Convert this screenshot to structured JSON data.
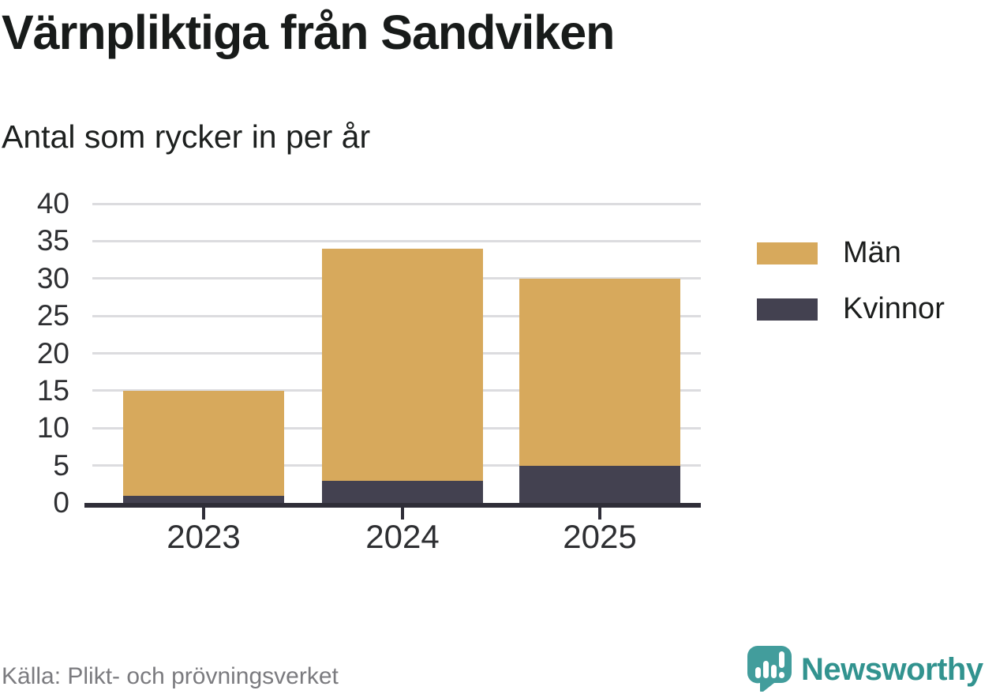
{
  "chart_data": {
    "type": "bar",
    "stacked": true,
    "title": "Värnpliktiga från Sandviken",
    "subtitle": "Antal som rycker in per år",
    "categories": [
      "2023",
      "2024",
      "2025"
    ],
    "series": [
      {
        "name": "Män",
        "color": "#d7a95c",
        "values": [
          14,
          31,
          25
        ]
      },
      {
        "name": "Kvinnor",
        "color": "#434150",
        "values": [
          1,
          3,
          5
        ]
      }
    ],
    "stack_totals": [
      15,
      34,
      30
    ],
    "ylim": [
      0,
      40
    ],
    "yticks": [
      0,
      5,
      10,
      15,
      20,
      25,
      30,
      35,
      40
    ],
    "grid": "horizontal-only",
    "legend_position": "right",
    "axis_color": "#2f2e38",
    "gridline_color": "#dcdcdf",
    "source": "Källa: Plikt- och prövningsverket"
  },
  "brand": {
    "name": "Newsworthy",
    "color": "#32938f",
    "icon": "speech-bubble-bar-chart",
    "icon_color": "#429d9c"
  }
}
